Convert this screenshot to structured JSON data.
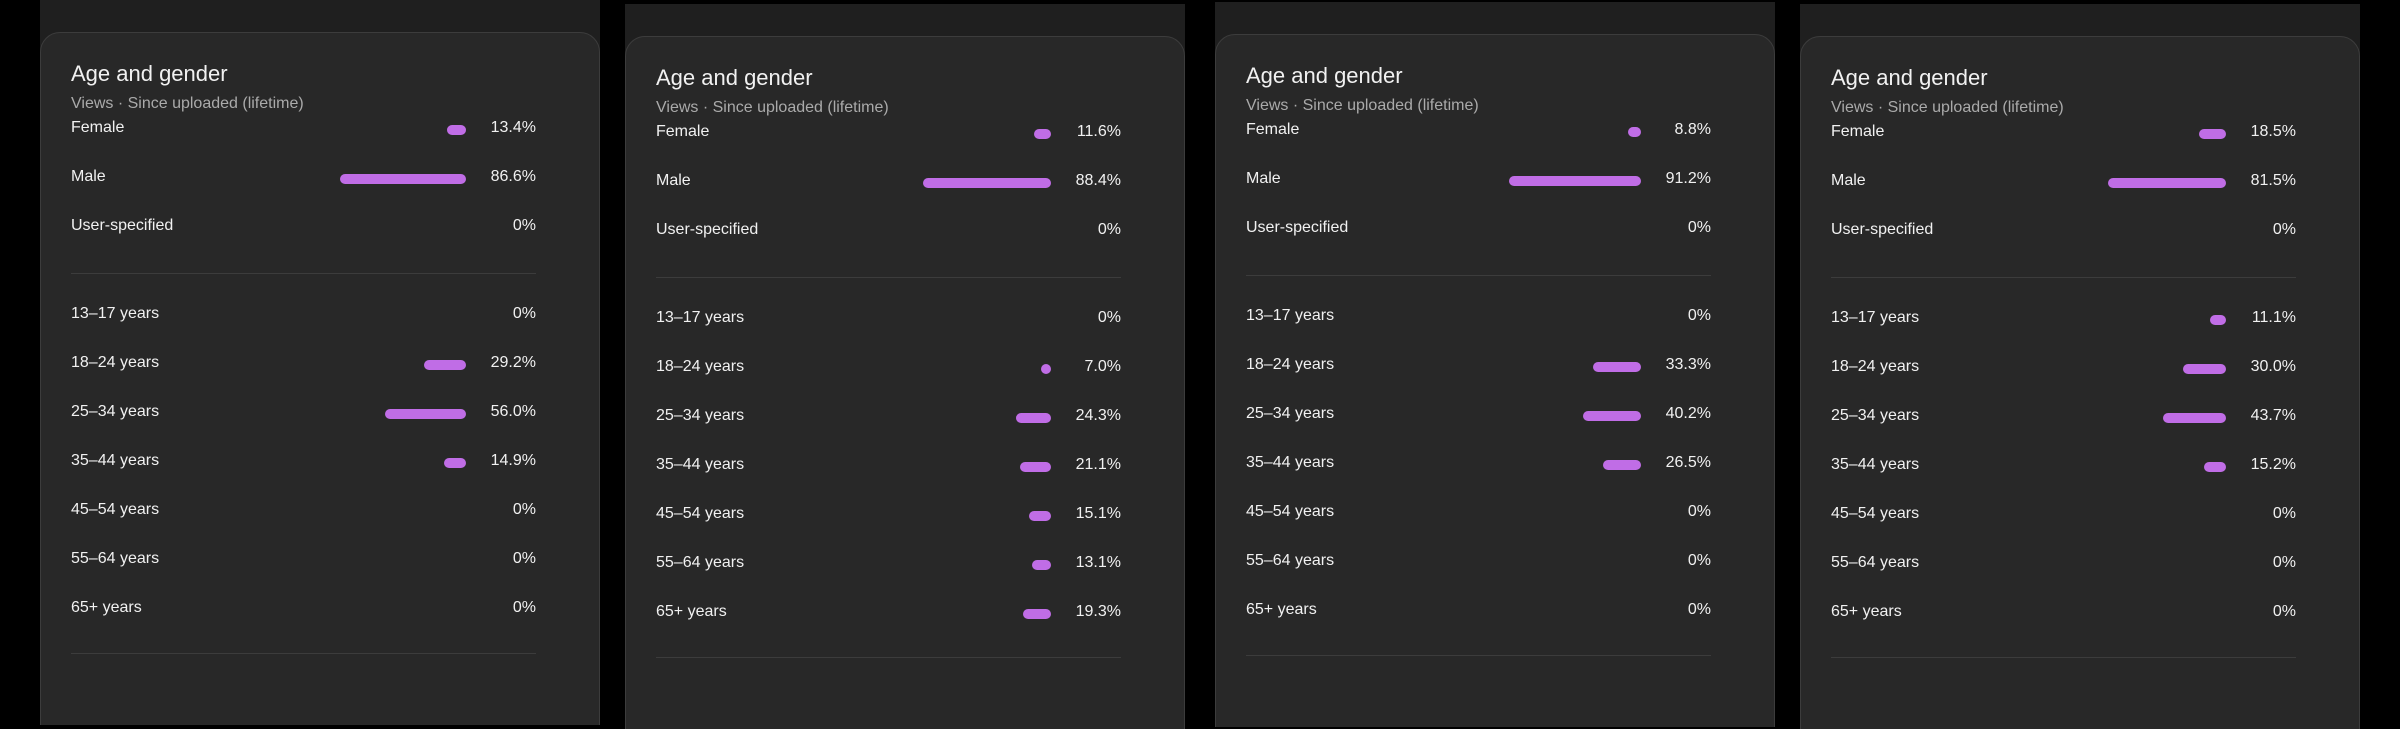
{
  "colors": {
    "bar": "#c06de6",
    "card": "#282828",
    "background": "#000000"
  },
  "panels": [
    {
      "title": "Age and gender",
      "subtitle": "Views · Since uploaded (lifetime)",
      "gender": [
        {
          "label": "Female",
          "value": "13.4%",
          "pct": 13.4
        },
        {
          "label": "Male",
          "value": "86.6%",
          "pct": 86.6
        },
        {
          "label": "User-specified",
          "value": "0%",
          "pct": 0
        }
      ],
      "age": [
        {
          "label": "13–17 years",
          "value": "0%",
          "pct": 0
        },
        {
          "label": "18–24 years",
          "value": "29.2%",
          "pct": 29.2
        },
        {
          "label": "25–34 years",
          "value": "56.0%",
          "pct": 56.0
        },
        {
          "label": "35–44 years",
          "value": "14.9%",
          "pct": 14.9
        },
        {
          "label": "45–54 years",
          "value": "0%",
          "pct": 0
        },
        {
          "label": "55–64 years",
          "value": "0%",
          "pct": 0
        },
        {
          "label": "65+ years",
          "value": "0%",
          "pct": 0
        }
      ]
    },
    {
      "title": "Age and gender",
      "subtitle": "Views · Since uploaded (lifetime)",
      "gender": [
        {
          "label": "Female",
          "value": "11.6%",
          "pct": 11.6
        },
        {
          "label": "Male",
          "value": "88.4%",
          "pct": 88.4
        },
        {
          "label": "User-specified",
          "value": "0%",
          "pct": 0
        }
      ],
      "age": [
        {
          "label": "13–17 years",
          "value": "0%",
          "pct": 0
        },
        {
          "label": "18–24 years",
          "value": "7.0%",
          "pct": 7.0
        },
        {
          "label": "25–34 years",
          "value": "24.3%",
          "pct": 24.3
        },
        {
          "label": "35–44 years",
          "value": "21.1%",
          "pct": 21.1
        },
        {
          "label": "45–54 years",
          "value": "15.1%",
          "pct": 15.1
        },
        {
          "label": "55–64 years",
          "value": "13.1%",
          "pct": 13.1
        },
        {
          "label": "65+ years",
          "value": "19.3%",
          "pct": 19.3
        }
      ]
    },
    {
      "title": "Age and gender",
      "subtitle": "Views · Since uploaded (lifetime)",
      "gender": [
        {
          "label": "Female",
          "value": "8.8%",
          "pct": 8.8
        },
        {
          "label": "Male",
          "value": "91.2%",
          "pct": 91.2
        },
        {
          "label": "User-specified",
          "value": "0%",
          "pct": 0
        }
      ],
      "age": [
        {
          "label": "13–17 years",
          "value": "0%",
          "pct": 0
        },
        {
          "label": "18–24 years",
          "value": "33.3%",
          "pct": 33.3
        },
        {
          "label": "25–34 years",
          "value": "40.2%",
          "pct": 40.2
        },
        {
          "label": "35–44 years",
          "value": "26.5%",
          "pct": 26.5
        },
        {
          "label": "45–54 years",
          "value": "0%",
          "pct": 0
        },
        {
          "label": "55–64 years",
          "value": "0%",
          "pct": 0
        },
        {
          "label": "65+ years",
          "value": "0%",
          "pct": 0
        }
      ]
    },
    {
      "title": "Age and gender",
      "subtitle": "Views · Since uploaded (lifetime)",
      "gender": [
        {
          "label": "Female",
          "value": "18.5%",
          "pct": 18.5
        },
        {
          "label": "Male",
          "value": "81.5%",
          "pct": 81.5
        },
        {
          "label": "User-specified",
          "value": "0%",
          "pct": 0
        }
      ],
      "age": [
        {
          "label": "13–17 years",
          "value": "11.1%",
          "pct": 11.1
        },
        {
          "label": "18–24 years",
          "value": "30.0%",
          "pct": 30.0
        },
        {
          "label": "25–34 years",
          "value": "43.7%",
          "pct": 43.7
        },
        {
          "label": "35–44 years",
          "value": "15.2%",
          "pct": 15.2
        },
        {
          "label": "45–54 years",
          "value": "0%",
          "pct": 0
        },
        {
          "label": "55–64 years",
          "value": "0%",
          "pct": 0
        },
        {
          "label": "65+ years",
          "value": "0%",
          "pct": 0
        }
      ]
    }
  ]
}
